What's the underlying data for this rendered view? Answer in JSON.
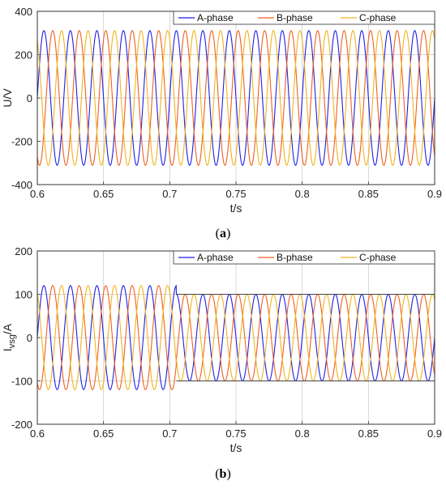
{
  "chart_data": [
    {
      "type": "line",
      "caption_open": "(",
      "caption_letter": "a",
      "caption_close": ")",
      "xlabel": "t/s",
      "ylabel": "U/V",
      "xlim": [
        0.6,
        0.9
      ],
      "ylim": [
        -400,
        400
      ],
      "xticks": [
        0.6,
        0.65,
        0.7,
        0.75,
        0.8,
        0.85,
        0.9
      ],
      "xtick_labels": [
        "0.6",
        "0.65",
        "0.7",
        "0.75",
        "0.8",
        "0.85",
        "0.9"
      ],
      "yticks": [
        400,
        200,
        0,
        -200,
        -400
      ],
      "ytick_labels": [
        "400",
        "200",
        "0",
        "-200",
        "-400"
      ],
      "grid": true,
      "legend_position": "top-right",
      "frequency_hz": 50,
      "series": [
        {
          "name": "A-phase",
          "color": "#1f1fe6",
          "amplitude": 311,
          "phase_deg": 0
        },
        {
          "name": "B-phase",
          "color": "#f06020",
          "amplitude": 311,
          "phase_deg": -120
        },
        {
          "name": "C-phase",
          "color": "#f2b31d",
          "amplitude": 311,
          "phase_deg": 120
        }
      ]
    },
    {
      "type": "line",
      "caption_open": "(",
      "caption_letter": "b",
      "caption_close": ")",
      "xlabel": "t/s",
      "ylabel_main": "I",
      "ylabel_sub": "vsg",
      "ylabel_tail": "/A",
      "xlim": [
        0.6,
        0.9
      ],
      "ylim": [
        -200,
        200
      ],
      "xticks": [
        0.6,
        0.65,
        0.7,
        0.75,
        0.8,
        0.85,
        0.9
      ],
      "xtick_labels": [
        "0.6",
        "0.65",
        "0.7",
        "0.75",
        "0.8",
        "0.85",
        "0.9"
      ],
      "yticks": [
        200,
        100,
        0,
        -100,
        -200
      ],
      "ytick_labels": [
        "200",
        "100",
        "0",
        "-100",
        "-200"
      ],
      "grid": true,
      "legend_position": "top-right",
      "frequency_hz": 50,
      "step_time": 0.705,
      "reference_lines": [
        100,
        -100
      ],
      "series": [
        {
          "name": "A-phase",
          "color": "#1f1fe6",
          "amplitude_before": 120,
          "amplitude_after": 100,
          "phase_deg": 0
        },
        {
          "name": "B-phase",
          "color": "#f06020",
          "amplitude_before": 120,
          "amplitude_after": 100,
          "phase_deg": -120
        },
        {
          "name": "C-phase",
          "color": "#f2b31d",
          "amplitude_before": 120,
          "amplitude_after": 100,
          "phase_deg": 120
        }
      ]
    }
  ]
}
